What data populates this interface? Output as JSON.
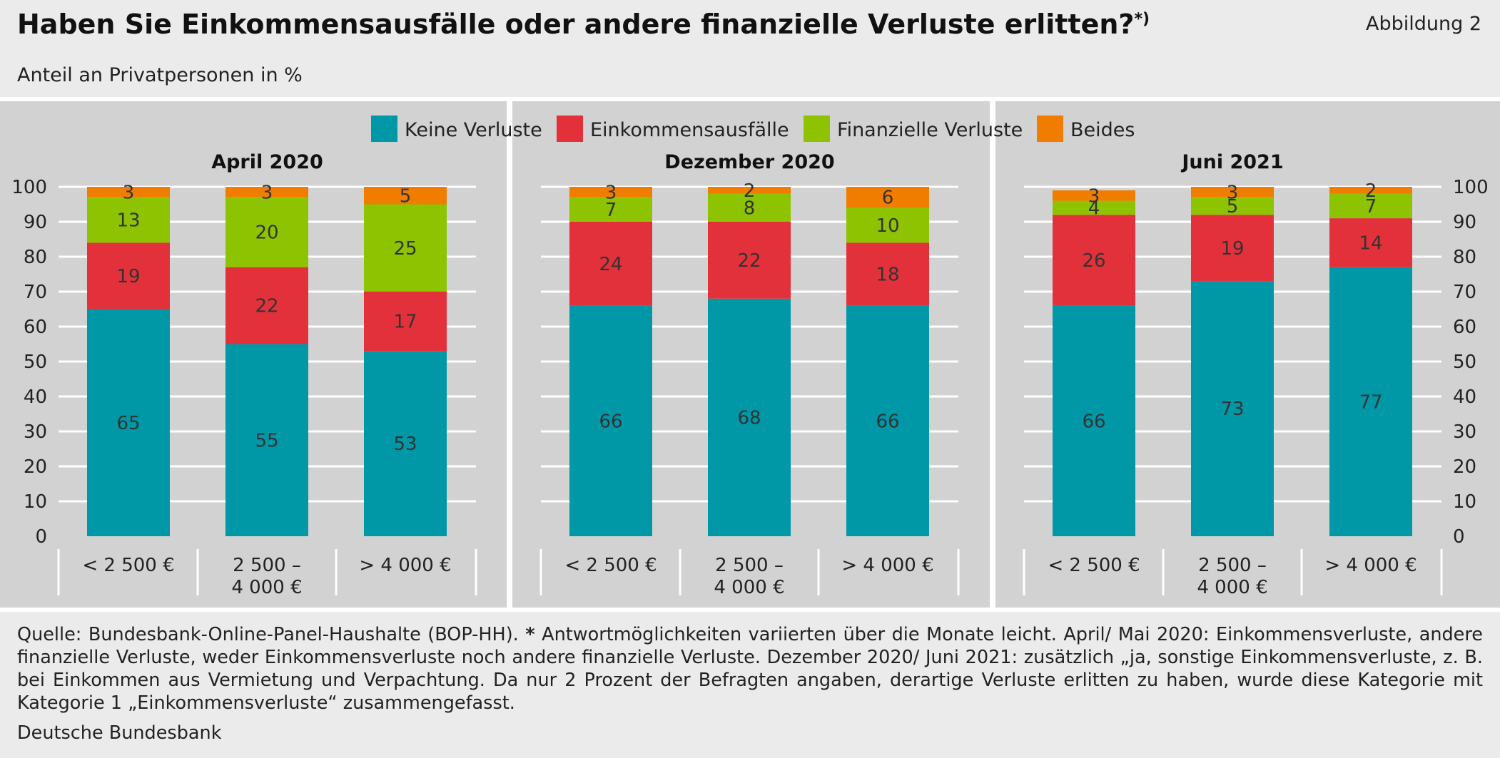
{
  "header": {
    "title": "Haben Sie Einkommensausfälle oder andere finanzielle Verluste erlitten?",
    "title_mark": "*)",
    "figure_label": "Abbildung 2",
    "subtitle": "Anteil an Privatpersonen in %"
  },
  "chart_data": {
    "type": "bar",
    "stacked": true,
    "ylim": [
      0,
      100
    ],
    "yticks": [
      0,
      10,
      20,
      30,
      40,
      50,
      60,
      70,
      80,
      90,
      100
    ],
    "legend_position": "top-center",
    "grid": true,
    "categories": [
      "< 2 500 €",
      "2 500 – 4 000 €",
      "> 4 000 €"
    ],
    "category_lines": [
      [
        "< 2 500 €"
      ],
      [
        "2 500 –",
        "4 000 €"
      ],
      [
        "> 4 000 €"
      ]
    ],
    "series_meta": [
      {
        "name": "Keine Verluste",
        "color": "#0097a7"
      },
      {
        "name": "Einkommensausfälle",
        "color": "#e3313b"
      },
      {
        "name": "Finanzielle Verluste",
        "color": "#8dc300"
      },
      {
        "name": "Beides",
        "color": "#f07d00"
      }
    ],
    "panels": [
      {
        "title": "April 2020",
        "series": [
          {
            "name": "Keine Verluste",
            "values": [
              65,
              55,
              53
            ]
          },
          {
            "name": "Einkommensausfälle",
            "values": [
              19,
              22,
              17
            ]
          },
          {
            "name": "Finanzielle Verluste",
            "values": [
              13,
              20,
              25
            ]
          },
          {
            "name": "Beides",
            "values": [
              3,
              3,
              5
            ]
          }
        ]
      },
      {
        "title": "Dezember 2020",
        "series": [
          {
            "name": "Keine Verluste",
            "values": [
              66,
              68,
              66
            ]
          },
          {
            "name": "Einkommensausfälle",
            "values": [
              24,
              22,
              18
            ]
          },
          {
            "name": "Finanzielle Verluste",
            "values": [
              7,
              8,
              10
            ]
          },
          {
            "name": "Beides",
            "values": [
              3,
              2,
              6
            ]
          }
        ]
      },
      {
        "title": "Juni 2021",
        "series": [
          {
            "name": "Keine Verluste",
            "values": [
              66,
              73,
              77
            ]
          },
          {
            "name": "Einkommensausfälle",
            "values": [
              26,
              19,
              14
            ]
          },
          {
            "name": "Finanzielle Verluste",
            "values": [
              4,
              5,
              7
            ]
          },
          {
            "name": "Beides",
            "values": [
              3,
              3,
              2
            ]
          }
        ]
      }
    ]
  },
  "footer": {
    "source_text": "Quelle: Bundesbank-Online-Panel-Haushalte (BOP-HH).",
    "note_mark": "*",
    "note_text": "Antwortmöglichkeiten variierten über die Monate leicht. April/ Mai 2020: Einkommensverluste, andere finanzielle Verluste, weder Einkommensverluste noch andere finanzielle Verluste. Dezember 2020/ Juni 2021: zusätzlich „ja, sonstige Einkommensverluste, z. B. bei Einkommen aus Vermietung und Verpachtung. Da nur 2 Prozent der Befragten angaben, derartige Verluste erlitten zu haben, wurde diese Kategorie mit Kategorie 1 „Einkommensverluste“ zusammengefasst.",
    "credit": "Deutsche Bundesbank"
  }
}
